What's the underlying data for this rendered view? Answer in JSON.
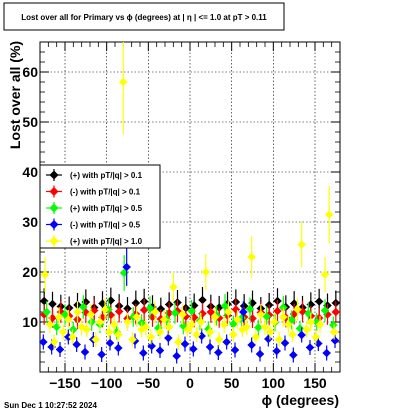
{
  "canvas": {
    "title_box": "Lost over all for Primary vs ϕ (degrees) at | η | <= 1.0 at pT > 0.11",
    "timestamp": "Sun Dec  1 10:27:52 2024"
  },
  "chart_data": {
    "type": "scatter",
    "title": "Lost over all for Primary vs ϕ (degrees) at | η | <= 1.0 at pT > 0.11",
    "xlabel": "ϕ (degrees)",
    "ylabel": "Lost over all (%)",
    "xlim": [
      -180,
      180
    ],
    "ylim": [
      0,
      66
    ],
    "xticks": [
      -150,
      -100,
      -50,
      0,
      50,
      100,
      150
    ],
    "xtick_labels": [
      "−150",
      "−100",
      "−50",
      "0",
      "50",
      "100",
      "150"
    ],
    "yticks": [
      10,
      20,
      30,
      40,
      50,
      60
    ],
    "ytick_labels": [
      "10",
      "20",
      "30",
      "40",
      "50",
      "60"
    ],
    "grid": true,
    "legend_position": "left-middle",
    "series": [
      {
        "name": "(+) with pT/|q| > 0.1",
        "color": "#000000",
        "marker": "diamond",
        "x": [
          -175,
          -165,
          -155,
          -145,
          -135,
          -125,
          -115,
          -105,
          -95,
          -85,
          -75,
          -65,
          -55,
          -45,
          -35,
          -25,
          -15,
          -5,
          5,
          15,
          25,
          35,
          45,
          55,
          65,
          75,
          85,
          95,
          105,
          115,
          125,
          135,
          145,
          155,
          165,
          175
        ],
        "y": [
          14.2,
          13.6,
          13.1,
          12.8,
          13.4,
          14.0,
          12.9,
          13.7,
          14.3,
          13.2,
          12.7,
          13.8,
          14.1,
          13.0,
          12.6,
          13.5,
          13.9,
          12.8,
          13.3,
          14.4,
          13.1,
          12.9,
          13.6,
          14.0,
          13.2,
          13.8,
          12.7,
          13.4,
          14.2,
          13.0,
          13.7,
          12.9,
          13.5,
          14.1,
          13.3,
          13.8
        ]
      },
      {
        "name": "(-) with pT/|q| > 0.1",
        "color": "#ff0000",
        "marker": "diamond",
        "x": [
          -175,
          -165,
          -155,
          -145,
          -135,
          -125,
          -115,
          -105,
          -95,
          -85,
          -75,
          -65,
          -55,
          -45,
          -35,
          -25,
          -15,
          -5,
          5,
          15,
          25,
          35,
          45,
          55,
          65,
          75,
          85,
          95,
          105,
          115,
          125,
          135,
          145,
          155,
          165,
          175
        ],
        "y": [
          11.5,
          10.8,
          12.0,
          11.2,
          10.5,
          11.9,
          12.3,
          10.9,
          11.4,
          12.1,
          10.7,
          11.6,
          12.4,
          11.0,
          10.6,
          11.8,
          12.2,
          11.1,
          10.9,
          11.7,
          12.0,
          10.8,
          11.3,
          12.5,
          11.0,
          10.7,
          11.9,
          11.4,
          12.2,
          10.9,
          11.6,
          12.1,
          11.2,
          10.8,
          11.5,
          12.0
        ]
      },
      {
        "name": "(+) with pT/|q| > 0.5",
        "color": "#00ff00",
        "marker": "diamond",
        "x": [
          -172,
          -160,
          -150,
          -140,
          -128,
          -118,
          -108,
          -98,
          -88,
          -79,
          -68,
          -58,
          -48,
          -38,
          -28,
          -18,
          -8,
          2,
          12,
          22,
          32,
          42,
          52,
          62,
          72,
          82,
          92,
          102,
          112,
          122,
          132,
          142,
          152,
          162,
          172
        ],
        "y": [
          12.0,
          9.0,
          11.5,
          8.5,
          13.0,
          10.0,
          9.5,
          12.5,
          8.0,
          19.8,
          11.0,
          9.8,
          12.8,
          8.8,
          10.5,
          11.8,
          9.2,
          12.2,
          10.2,
          8.6,
          11.3,
          13.2,
          9.6,
          10.8,
          12.6,
          8.9,
          11.1,
          9.9,
          12.9,
          10.4,
          8.7,
          11.7,
          10.0,
          12.3,
          9.4
        ]
      },
      {
        "name": "(-) with pT/|q| > 0.5",
        "color": "#0000ff",
        "marker": "diamond",
        "x": [
          -176,
          -166,
          -156,
          -146,
          -136,
          -126,
          -116,
          -106,
          -96,
          -86,
          -76,
          -66,
          -56,
          -46,
          -36,
          -26,
          -16,
          -6,
          4,
          14,
          24,
          34,
          44,
          54,
          64,
          74,
          84,
          94,
          104,
          114,
          124,
          134,
          144,
          154,
          164,
          174
        ],
        "y": [
          6.0,
          5.0,
          4.5,
          7.0,
          5.5,
          4.0,
          6.5,
          3.5,
          5.8,
          4.8,
          21.0,
          6.2,
          3.8,
          5.2,
          4.3,
          6.8,
          3.2,
          5.6,
          4.6,
          7.2,
          5.0,
          3.9,
          6.0,
          4.4,
          12.0,
          5.4,
          3.6,
          6.6,
          4.2,
          5.8,
          3.4,
          7.4,
          4.9,
          5.7,
          3.8,
          6.3
        ]
      },
      {
        "name": "(+) with pT/|q| > 1.0",
        "color": "#ffff00",
        "marker": "diamond",
        "x": [
          -174,
          -168,
          -163,
          -157,
          -152,
          -146,
          -141,
          -135,
          -130,
          -124,
          -119,
          -113,
          -108,
          -102,
          -97,
          -91,
          -86,
          -80,
          -75,
          -69,
          -64,
          -58,
          -53,
          -47,
          -42,
          -36,
          -31,
          -25,
          -20,
          -14,
          -9,
          -3,
          2,
          8,
          13,
          19,
          24,
          30,
          35,
          41,
          46,
          52,
          57,
          63,
          68,
          74,
          79,
          85,
          90,
          96,
          101,
          107,
          112,
          118,
          123,
          129,
          134,
          140,
          145,
          151,
          156,
          162,
          167,
          173
        ],
        "y": [
          19.5,
          9.5,
          6.0,
          11.0,
          8.0,
          10.5,
          7.0,
          12.0,
          9.0,
          8.5,
          11.5,
          6.5,
          10.0,
          12.5,
          8.0,
          9.5,
          7.5,
          58.0,
          10.0,
          6.5,
          11.0,
          8.5,
          9.0,
          7.0,
          12.0,
          8.0,
          10.5,
          9.0,
          17.0,
          6.0,
          11.5,
          8.5,
          9.5,
          7.5,
          10.0,
          20.0,
          8.0,
          11.0,
          6.5,
          9.5,
          12.0,
          7.5,
          10.5,
          8.5,
          9.0,
          23.0,
          7.0,
          11.5,
          9.0,
          8.0,
          10.0,
          6.5,
          11.0,
          9.5,
          7.5,
          12.5,
          25.5,
          8.5,
          10.0,
          7.0,
          9.5,
          19.5,
          31.5,
          8.0
        ]
      }
    ],
    "legend": [
      {
        "label": "(+) with pT/|q| > 0.1",
        "color": "#000000"
      },
      {
        "label": "(-) with pT/|q| > 0.1",
        "color": "#ff0000"
      },
      {
        "label": "(+) with pT/|q| > 0.5",
        "color": "#00ff00"
      },
      {
        "label": "(-) with pT/|q| > 0.5",
        "color": "#0000ff"
      },
      {
        "label": "(+) with pT/|q| > 1.0",
        "color": "#ffff00"
      }
    ]
  }
}
